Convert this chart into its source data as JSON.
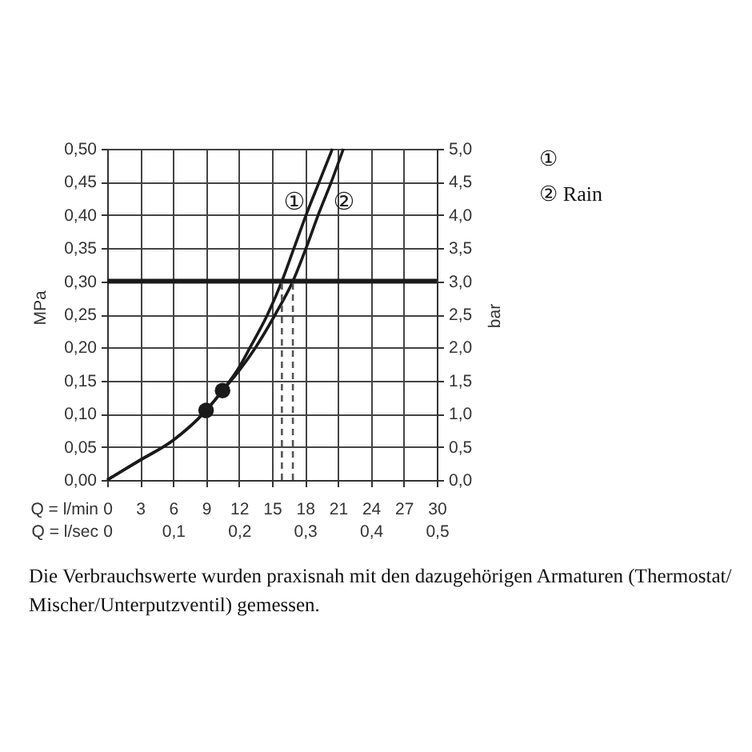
{
  "chart_data": {
    "type": "line",
    "xlabel": "Q = l/min",
    "x2label": "Q = l/sec",
    "ylabel": "MPa",
    "y2label": "bar",
    "xlim": [
      0,
      30
    ],
    "xticks": [
      0,
      3,
      6,
      9,
      12,
      15,
      18,
      21,
      24,
      27,
      30
    ],
    "x2lim": [
      0,
      0.5
    ],
    "x2ticks": [
      0,
      {
        "value": 0.1,
        "label": "0,1"
      },
      {
        "value": 0.2,
        "label": "0,2"
      },
      {
        "value": 0.3,
        "label": "0,3"
      },
      {
        "value": 0.4,
        "label": "0,4"
      },
      {
        "value": 0.5,
        "label": "0,5"
      }
    ],
    "ylim": [
      0,
      0.5
    ],
    "yticks": [
      {
        "value": 0,
        "label": "0,00"
      },
      {
        "value": 0.05,
        "label": "0,05"
      },
      {
        "value": 0.1,
        "label": "0,10"
      },
      {
        "value": 0.15,
        "label": "0,15"
      },
      {
        "value": 0.2,
        "label": "0,20"
      },
      {
        "value": 0.25,
        "label": "0,25"
      },
      {
        "value": 0.3,
        "label": "0,30"
      },
      {
        "value": 0.35,
        "label": "0,35"
      },
      {
        "value": 0.4,
        "label": "0,40"
      },
      {
        "value": 0.45,
        "label": "0,45"
      },
      {
        "value": 0.5,
        "label": "0,50"
      }
    ],
    "y2lim": [
      0,
      5
    ],
    "y2ticks": [
      {
        "value": 0,
        "label": "0,0"
      },
      {
        "value": 0.5,
        "label": "0,5"
      },
      {
        "value": 1,
        "label": "1,0"
      },
      {
        "value": 1.5,
        "label": "1,5"
      },
      {
        "value": 2,
        "label": "2,0"
      },
      {
        "value": 2.5,
        "label": "2,5"
      },
      {
        "value": 3,
        "label": "3,0"
      },
      {
        "value": 3.5,
        "label": "3,5"
      },
      {
        "value": 4,
        "label": "4,0"
      },
      {
        "value": 4.5,
        "label": "4,5"
      },
      {
        "value": 5,
        "label": "5,0"
      }
    ],
    "grid": true,
    "legend": "top right",
    "series": [
      {
        "name": "①",
        "color": "#1a1a1a",
        "x": [
          0,
          3,
          6,
          9,
          10.5,
          12,
          13,
          14.6,
          15.9,
          17,
          18.1,
          19.3,
          20.5
        ],
        "values": [
          0,
          0.03,
          0.06,
          0.105,
          0.135,
          0.17,
          0.2,
          0.25,
          0.3,
          0.35,
          0.4,
          0.45,
          0.5
        ]
      },
      {
        "name": "② Rain",
        "color": "#1a1a1a",
        "x": [
          0,
          3,
          6,
          9,
          10.5,
          12,
          13.5,
          15.3,
          16.9,
          18.1,
          19.2,
          20.4,
          21.5
        ],
        "values": [
          0,
          0.03,
          0.06,
          0.105,
          0.135,
          0.165,
          0.2,
          0.25,
          0.3,
          0.35,
          0.4,
          0.45,
          0.5
        ]
      },
      {
        "type": "scatter",
        "color": "#1a1a1a",
        "marker": "circle",
        "x": [
          9,
          10.5
        ],
        "values": [
          0.105,
          0.135
        ]
      },
      {
        "type": "line",
        "color": "#555555",
        "line_style": "dashed",
        "x": [
          15.9,
          15.9
        ],
        "values": [
          0,
          0.3
        ]
      },
      {
        "type": "line",
        "color": "#555555",
        "line_style": "dashed",
        "x": [
          16.9,
          16.9
        ],
        "values": [
          0,
          0.3
        ]
      }
    ],
    "ref_lines": [
      {
        "axis": "y",
        "value": 0.3,
        "color": "#1a1a1a"
      }
    ],
    "annotations": [
      {
        "text": "①",
        "x": 18.6,
        "y": 0.42
      },
      {
        "text": "②",
        "x": 19.7,
        "y": 0.42
      },
      "Die Verbrauchswerte wurden praxisnah mit den dazugehörigen Armaturen (Thermostat/Mischer/Unterputzventil) gemessen."
    ]
  }
}
